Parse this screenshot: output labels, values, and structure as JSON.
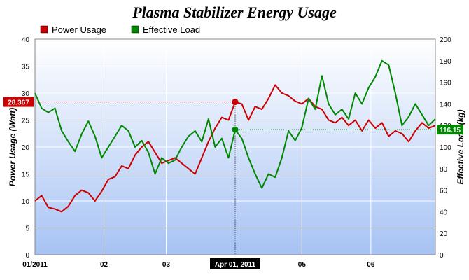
{
  "chart_data": {
    "type": "line",
    "title": "Plasma Stabilizer Energy Usage",
    "x_axis": {
      "type": "date",
      "range": [
        "2011-01-01",
        "2011-06-30"
      ],
      "tick_labels": [
        {
          "date": "2011-01-01",
          "label": "01/2011"
        },
        {
          "date": "2011-02-01",
          "label": "02"
        },
        {
          "date": "2011-03-01",
          "label": "03"
        },
        {
          "date": "2011-05-01",
          "label": "05"
        },
        {
          "date": "2011-06-01",
          "label": "06"
        }
      ]
    },
    "y_left": {
      "label": "Power Usage (Watt)",
      "range": [
        0,
        40
      ],
      "ticks": [
        0,
        5,
        10,
        15,
        20,
        25,
        30,
        35,
        40
      ]
    },
    "y_right": {
      "label": "Effective Load (kg)",
      "range": [
        0,
        200
      ],
      "ticks": [
        0,
        20,
        40,
        60,
        80,
        100,
        120,
        140,
        160,
        180,
        200
      ]
    },
    "grid": true,
    "legend": {
      "position": "top-left"
    },
    "series": [
      {
        "name": "Power Usage",
        "axis": "left",
        "color": "#cc0000",
        "points": [
          [
            "2011-01-01",
            10.0
          ],
          [
            "2011-01-04",
            11.0
          ],
          [
            "2011-01-07",
            8.8
          ],
          [
            "2011-01-10",
            8.5
          ],
          [
            "2011-01-13",
            8.0
          ],
          [
            "2011-01-16",
            9.0
          ],
          [
            "2011-01-19",
            11.0
          ],
          [
            "2011-01-22",
            12.0
          ],
          [
            "2011-01-25",
            11.5
          ],
          [
            "2011-01-28",
            10.0
          ],
          [
            "2011-01-31",
            11.8
          ],
          [
            "2011-02-03",
            14.0
          ],
          [
            "2011-02-06",
            14.5
          ],
          [
            "2011-02-09",
            16.5
          ],
          [
            "2011-02-12",
            16.0
          ],
          [
            "2011-02-15",
            18.5
          ],
          [
            "2011-02-18",
            20.0
          ],
          [
            "2011-02-21",
            21.0
          ],
          [
            "2011-02-24",
            19.0
          ],
          [
            "2011-02-27",
            17.0
          ],
          [
            "2011-03-02",
            17.5
          ],
          [
            "2011-03-05",
            18.0
          ],
          [
            "2011-03-08",
            17.0
          ],
          [
            "2011-03-11",
            16.0
          ],
          [
            "2011-03-14",
            15.0
          ],
          [
            "2011-03-17",
            18.0
          ],
          [
            "2011-03-20",
            21.0
          ],
          [
            "2011-03-23",
            23.5
          ],
          [
            "2011-03-26",
            25.5
          ],
          [
            "2011-03-29",
            25.0
          ],
          [
            "2011-04-01",
            28.367
          ],
          [
            "2011-04-04",
            28.0
          ],
          [
            "2011-04-07",
            25.0
          ],
          [
            "2011-04-10",
            27.5
          ],
          [
            "2011-04-13",
            27.0
          ],
          [
            "2011-04-16",
            29.0
          ],
          [
            "2011-04-19",
            31.5
          ],
          [
            "2011-04-22",
            30.0
          ],
          [
            "2011-04-25",
            29.5
          ],
          [
            "2011-04-28",
            28.5
          ],
          [
            "2011-05-01",
            28.0
          ],
          [
            "2011-05-04",
            29.0
          ],
          [
            "2011-05-07",
            27.5
          ],
          [
            "2011-05-10",
            27.0
          ],
          [
            "2011-05-13",
            25.0
          ],
          [
            "2011-05-16",
            24.5
          ],
          [
            "2011-05-19",
            25.5
          ],
          [
            "2011-05-22",
            24.0
          ],
          [
            "2011-05-25",
            25.0
          ],
          [
            "2011-05-28",
            23.0
          ],
          [
            "2011-05-31",
            25.0
          ],
          [
            "2011-06-03",
            23.5
          ],
          [
            "2011-06-06",
            24.5
          ],
          [
            "2011-06-09",
            22.0
          ],
          [
            "2011-06-12",
            23.0
          ],
          [
            "2011-06-15",
            22.5
          ],
          [
            "2011-06-18",
            21.0
          ],
          [
            "2011-06-21",
            23.0
          ],
          [
            "2011-06-24",
            24.5
          ],
          [
            "2011-06-27",
            23.5
          ],
          [
            "2011-06-30",
            24.0
          ]
        ]
      },
      {
        "name": "Effective Load",
        "axis": "right",
        "color": "#008800",
        "points": [
          [
            "2011-01-01",
            150
          ],
          [
            "2011-01-04",
            136
          ],
          [
            "2011-01-07",
            132
          ],
          [
            "2011-01-10",
            136
          ],
          [
            "2011-01-13",
            115
          ],
          [
            "2011-01-16",
            105
          ],
          [
            "2011-01-19",
            96
          ],
          [
            "2011-01-22",
            112
          ],
          [
            "2011-01-25",
            124
          ],
          [
            "2011-01-28",
            110
          ],
          [
            "2011-01-31",
            90
          ],
          [
            "2011-02-03",
            100
          ],
          [
            "2011-02-06",
            110
          ],
          [
            "2011-02-09",
            120
          ],
          [
            "2011-02-12",
            115
          ],
          [
            "2011-02-15",
            100
          ],
          [
            "2011-02-18",
            106
          ],
          [
            "2011-02-21",
            95
          ],
          [
            "2011-02-24",
            75
          ],
          [
            "2011-02-27",
            90
          ],
          [
            "2011-03-02",
            85
          ],
          [
            "2011-03-05",
            88
          ],
          [
            "2011-03-08",
            100
          ],
          [
            "2011-03-11",
            110
          ],
          [
            "2011-03-14",
            115
          ],
          [
            "2011-03-17",
            105
          ],
          [
            "2011-03-20",
            126
          ],
          [
            "2011-03-23",
            100
          ],
          [
            "2011-03-26",
            108
          ],
          [
            "2011-03-29",
            90
          ],
          [
            "2011-04-01",
            116
          ],
          [
            "2011-04-04",
            108
          ],
          [
            "2011-04-07",
            90
          ],
          [
            "2011-04-10",
            75
          ],
          [
            "2011-04-13",
            62
          ],
          [
            "2011-04-16",
            75
          ],
          [
            "2011-04-19",
            72
          ],
          [
            "2011-04-22",
            90
          ],
          [
            "2011-04-25",
            115
          ],
          [
            "2011-04-28",
            106
          ],
          [
            "2011-05-01",
            118
          ],
          [
            "2011-05-04",
            145
          ],
          [
            "2011-05-07",
            135
          ],
          [
            "2011-05-10",
            166
          ],
          [
            "2011-05-13",
            140
          ],
          [
            "2011-05-16",
            130
          ],
          [
            "2011-05-19",
            135
          ],
          [
            "2011-05-22",
            126
          ],
          [
            "2011-05-25",
            150
          ],
          [
            "2011-05-28",
            140
          ],
          [
            "2011-05-31",
            155
          ],
          [
            "2011-06-03",
            165
          ],
          [
            "2011-06-06",
            180
          ],
          [
            "2011-06-09",
            176
          ],
          [
            "2011-06-12",
            150
          ],
          [
            "2011-06-15",
            120
          ],
          [
            "2011-06-18",
            128
          ],
          [
            "2011-06-21",
            140
          ],
          [
            "2011-06-24",
            130
          ],
          [
            "2011-06-27",
            120
          ],
          [
            "2011-06-30",
            126
          ]
        ]
      }
    ],
    "crosshair": {
      "x_label": "Apr 01, 2011",
      "x_date": "2011-04-01",
      "left_value": 28.367,
      "left_label": "28.367",
      "right_value": 116.15,
      "right_label": "116.15"
    }
  }
}
